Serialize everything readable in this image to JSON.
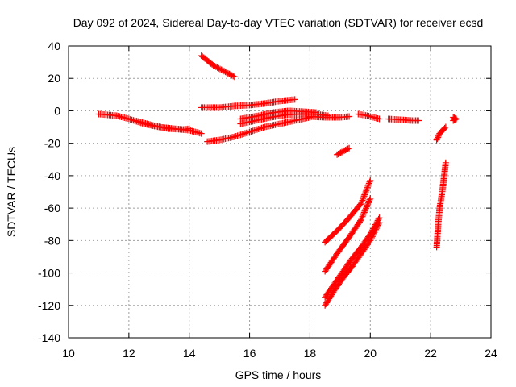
{
  "chart_data": {
    "type": "scatter",
    "title": "Day 092 of 2024, Sidereal Day-to-day VTEC variation (SDTVAR) for receiver ecsd",
    "xlabel": "GPS time / hours",
    "ylabel": "SDTVAR / TECUs",
    "xlim": [
      10,
      24
    ],
    "ylim": [
      -140,
      40
    ],
    "xticks": [
      10,
      12,
      14,
      16,
      18,
      20,
      22,
      24
    ],
    "yticks": [
      -140,
      -120,
      -100,
      -80,
      -60,
      -40,
      -20,
      0,
      20,
      40
    ],
    "grid": true,
    "marker": "+",
    "color": "#ff0000",
    "series": [
      {
        "points": [
          [
            11.0,
            -2
          ],
          [
            11.3,
            -2.5
          ],
          [
            11.6,
            -3
          ]
        ]
      },
      {
        "points": [
          [
            11.6,
            -3
          ],
          [
            12.0,
            -5
          ],
          [
            12.5,
            -8
          ],
          [
            13.0,
            -10
          ],
          [
            13.5,
            -11
          ],
          [
            14.0,
            -12
          ],
          [
            14.4,
            -14
          ]
        ]
      },
      {
        "points": [
          [
            12.2,
            -6
          ],
          [
            12.8,
            -9
          ],
          [
            13.3,
            -11
          ],
          [
            13.8,
            -11.5
          ],
          [
            14.0,
            -11
          ]
        ]
      },
      {
        "points": [
          [
            14.4,
            34
          ],
          [
            14.8,
            28
          ],
          [
            15.2,
            24
          ],
          [
            15.5,
            21
          ]
        ]
      },
      {
        "points": [
          [
            14.4,
            2
          ],
          [
            15.0,
            2
          ],
          [
            15.5,
            3
          ],
          [
            16.0,
            3.5
          ],
          [
            16.5,
            4.5
          ],
          [
            17.0,
            6
          ],
          [
            17.5,
            7
          ]
        ]
      },
      {
        "points": [
          [
            14.6,
            -19
          ],
          [
            15.0,
            -18
          ],
          [
            15.5,
            -16
          ],
          [
            16.0,
            -13
          ],
          [
            16.5,
            -10
          ],
          [
            17.0,
            -8
          ],
          [
            17.5,
            -6
          ],
          [
            18.0,
            -4
          ]
        ]
      },
      {
        "points": [
          [
            15.7,
            -8
          ],
          [
            16.2,
            -6
          ],
          [
            16.7,
            -4
          ],
          [
            17.2,
            -2.5
          ],
          [
            17.7,
            -2
          ],
          [
            18.2,
            -2
          ],
          [
            18.6,
            -3
          ]
        ]
      },
      {
        "points": [
          [
            15.7,
            -5
          ],
          [
            16.3,
            -3
          ],
          [
            16.8,
            -1
          ],
          [
            17.3,
            0
          ],
          [
            17.8,
            -0.5
          ],
          [
            18.2,
            -1
          ]
        ]
      },
      {
        "points": [
          [
            18.0,
            -3.5
          ],
          [
            18.5,
            -4
          ],
          [
            19.0,
            -4
          ],
          [
            19.3,
            -3.5
          ]
        ]
      },
      {
        "points": [
          [
            18.9,
            -27
          ],
          [
            19.1,
            -25
          ],
          [
            19.3,
            -23
          ]
        ]
      },
      {
        "points": [
          [
            19.6,
            -2
          ],
          [
            19.9,
            -3
          ],
          [
            20.3,
            -5
          ]
        ]
      },
      {
        "points": [
          [
            20.6,
            -5
          ],
          [
            21.0,
            -5.5
          ],
          [
            21.4,
            -6
          ],
          [
            21.6,
            -6
          ]
        ]
      },
      {
        "points": [
          [
            18.5,
            -81
          ],
          [
            18.9,
            -74
          ],
          [
            19.3,
            -66
          ],
          [
            19.7,
            -57
          ],
          [
            20.0,
            -43
          ]
        ]
      },
      {
        "points": [
          [
            18.5,
            -99
          ],
          [
            18.9,
            -88
          ],
          [
            19.3,
            -78
          ],
          [
            19.7,
            -67
          ],
          [
            20.0,
            -54
          ]
        ]
      },
      {
        "points": [
          [
            18.5,
            -120
          ],
          [
            18.8,
            -111
          ],
          [
            19.1,
            -103
          ],
          [
            19.4,
            -96
          ],
          [
            19.7,
            -88
          ],
          [
            20.0,
            -80
          ],
          [
            20.3,
            -69
          ]
        ]
      },
      {
        "points": [
          [
            18.5,
            -115
          ],
          [
            18.8,
            -107
          ],
          [
            19.1,
            -99
          ],
          [
            19.4,
            -91
          ],
          [
            19.7,
            -84
          ],
          [
            20.0,
            -76
          ],
          [
            20.3,
            -66
          ]
        ]
      },
      {
        "points": [
          [
            22.2,
            -18
          ],
          [
            22.3,
            -14
          ],
          [
            22.5,
            -10
          ]
        ]
      },
      {
        "points": [
          [
            22.2,
            -84
          ],
          [
            22.25,
            -70
          ],
          [
            22.3,
            -60
          ],
          [
            22.4,
            -48
          ],
          [
            22.45,
            -40
          ],
          [
            22.5,
            -32
          ]
        ]
      },
      {
        "points": [
          [
            22.75,
            -4
          ],
          [
            22.85,
            -5
          ],
          [
            22.75,
            -6
          ]
        ]
      }
    ]
  }
}
